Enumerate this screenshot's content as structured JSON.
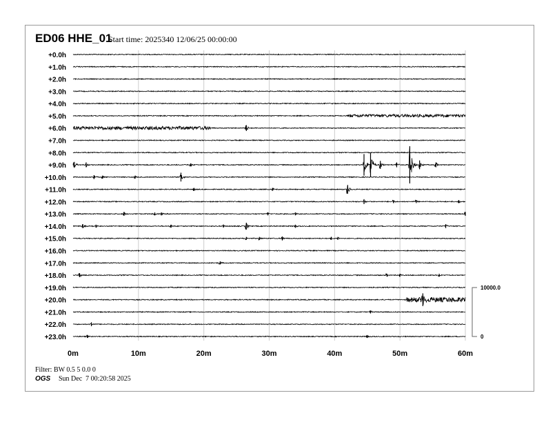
{
  "header": {
    "station": "ED06 HHE_01",
    "start_time": "Start time: 2025340 12/06/25 00:00:00"
  },
  "footer": {
    "filter": "Filter: BW 0.5 5 0.0 0",
    "org": "OGS",
    "generated": "Sun Dec  7 00:20:58 2025"
  },
  "chart_data": {
    "type": "line",
    "subtype": "helicorder",
    "row_labels": [
      "+0.0h",
      "+1.0h",
      "+2.0h",
      "+3.0h",
      "+4.0h",
      "+5.0h",
      "+6.0h",
      "+7.0h",
      "+8.0h",
      "+9.0h",
      "+10.0h",
      "+11.0h",
      "+12.0h",
      "+13.0h",
      "+14.0h",
      "+15.0h",
      "+16.0h",
      "+17.0h",
      "+18.0h",
      "+19.0h",
      "+20.0h",
      "+21.0h",
      "+22.0h",
      "+23.0h"
    ],
    "x_ticks": [
      "0m",
      "10m",
      "20m",
      "30m",
      "40m",
      "50m",
      "60m"
    ],
    "xlim": [
      0,
      60
    ],
    "grid": true,
    "scale_bar": {
      "top_label": "10000.0",
      "bottom_label": "0",
      "top": 10000,
      "bottom": 0
    },
    "trace_color": "#000000",
    "grid_color": "#cccccc",
    "noisy_segments": [
      {
        "row": 5,
        "from": 42,
        "to": 60,
        "amp": 300
      },
      {
        "row": 6,
        "from": 0,
        "to": 21,
        "amp": 350
      },
      {
        "row": 20,
        "from": 51,
        "to": 60,
        "amp": 500
      }
    ],
    "events": [
      {
        "row": 6,
        "minute": 26.5,
        "amp": 600
      },
      {
        "row": 9,
        "minute": 0.2,
        "amp": 600
      },
      {
        "row": 9,
        "minute": 2,
        "amp": 500
      },
      {
        "row": 9,
        "minute": 18,
        "amp": 300
      },
      {
        "row": 9,
        "minute": 44.5,
        "amp": 2200
      },
      {
        "row": 9,
        "minute": 45.5,
        "amp": 2500
      },
      {
        "row": 9,
        "minute": 47,
        "amp": 800
      },
      {
        "row": 9,
        "minute": 49.5,
        "amp": 500
      },
      {
        "row": 9,
        "minute": 51.5,
        "amp": 3800
      },
      {
        "row": 9,
        "minute": 53,
        "amp": 900
      },
      {
        "row": 9,
        "minute": 55.5,
        "amp": 500
      },
      {
        "row": 10,
        "minute": 3.2,
        "amp": 400
      },
      {
        "row": 10,
        "minute": 4.5,
        "amp": 300
      },
      {
        "row": 10,
        "minute": 9.5,
        "amp": 300
      },
      {
        "row": 10,
        "minute": 16.5,
        "amp": 900
      },
      {
        "row": 11,
        "minute": 18.5,
        "amp": 300
      },
      {
        "row": 11,
        "minute": 30.5,
        "amp": 300
      },
      {
        "row": 11,
        "minute": 42,
        "amp": 900
      },
      {
        "row": 12,
        "minute": 44.5,
        "amp": 500
      },
      {
        "row": 12,
        "minute": 49,
        "amp": 300
      },
      {
        "row": 12,
        "minute": 52.5,
        "amp": 300
      },
      {
        "row": 12,
        "minute": 59,
        "amp": 300
      },
      {
        "row": 13,
        "minute": 7.8,
        "amp": 400
      },
      {
        "row": 13,
        "minute": 12.5,
        "amp": 300
      },
      {
        "row": 13,
        "minute": 13.5,
        "amp": 300
      },
      {
        "row": 13,
        "minute": 29.8,
        "amp": 300
      },
      {
        "row": 13,
        "minute": 34,
        "amp": 300
      },
      {
        "row": 13,
        "minute": 60,
        "amp": 400
      },
      {
        "row": 14,
        "minute": 1.5,
        "amp": 400
      },
      {
        "row": 14,
        "minute": 3.5,
        "amp": 300
      },
      {
        "row": 14,
        "minute": 15,
        "amp": 300
      },
      {
        "row": 14,
        "minute": 23,
        "amp": 300
      },
      {
        "row": 14,
        "minute": 26.5,
        "amp": 700
      },
      {
        "row": 14,
        "minute": 34,
        "amp": 300
      },
      {
        "row": 14,
        "minute": 57,
        "amp": 400
      },
      {
        "row": 15,
        "minute": 26.5,
        "amp": 300
      },
      {
        "row": 15,
        "minute": 28.5,
        "amp": 300
      },
      {
        "row": 15,
        "minute": 32,
        "amp": 400
      },
      {
        "row": 15,
        "minute": 39.5,
        "amp": 300
      },
      {
        "row": 15,
        "minute": 40.5,
        "amp": 300
      },
      {
        "row": 17,
        "minute": 22.5,
        "amp": 300
      },
      {
        "row": 18,
        "minute": 1,
        "amp": 400
      },
      {
        "row": 18,
        "minute": 48,
        "amp": 300
      },
      {
        "row": 18,
        "minute": 50,
        "amp": 300
      },
      {
        "row": 18,
        "minute": 56,
        "amp": 300
      },
      {
        "row": 20,
        "minute": 53.5,
        "amp": 1300
      },
      {
        "row": 21,
        "minute": 45.5,
        "amp": 300
      },
      {
        "row": 22,
        "minute": 2.8,
        "amp": 400
      },
      {
        "row": 23,
        "minute": 2.2,
        "amp": 300
      },
      {
        "row": 23,
        "minute": 45,
        "amp": 300
      }
    ]
  }
}
